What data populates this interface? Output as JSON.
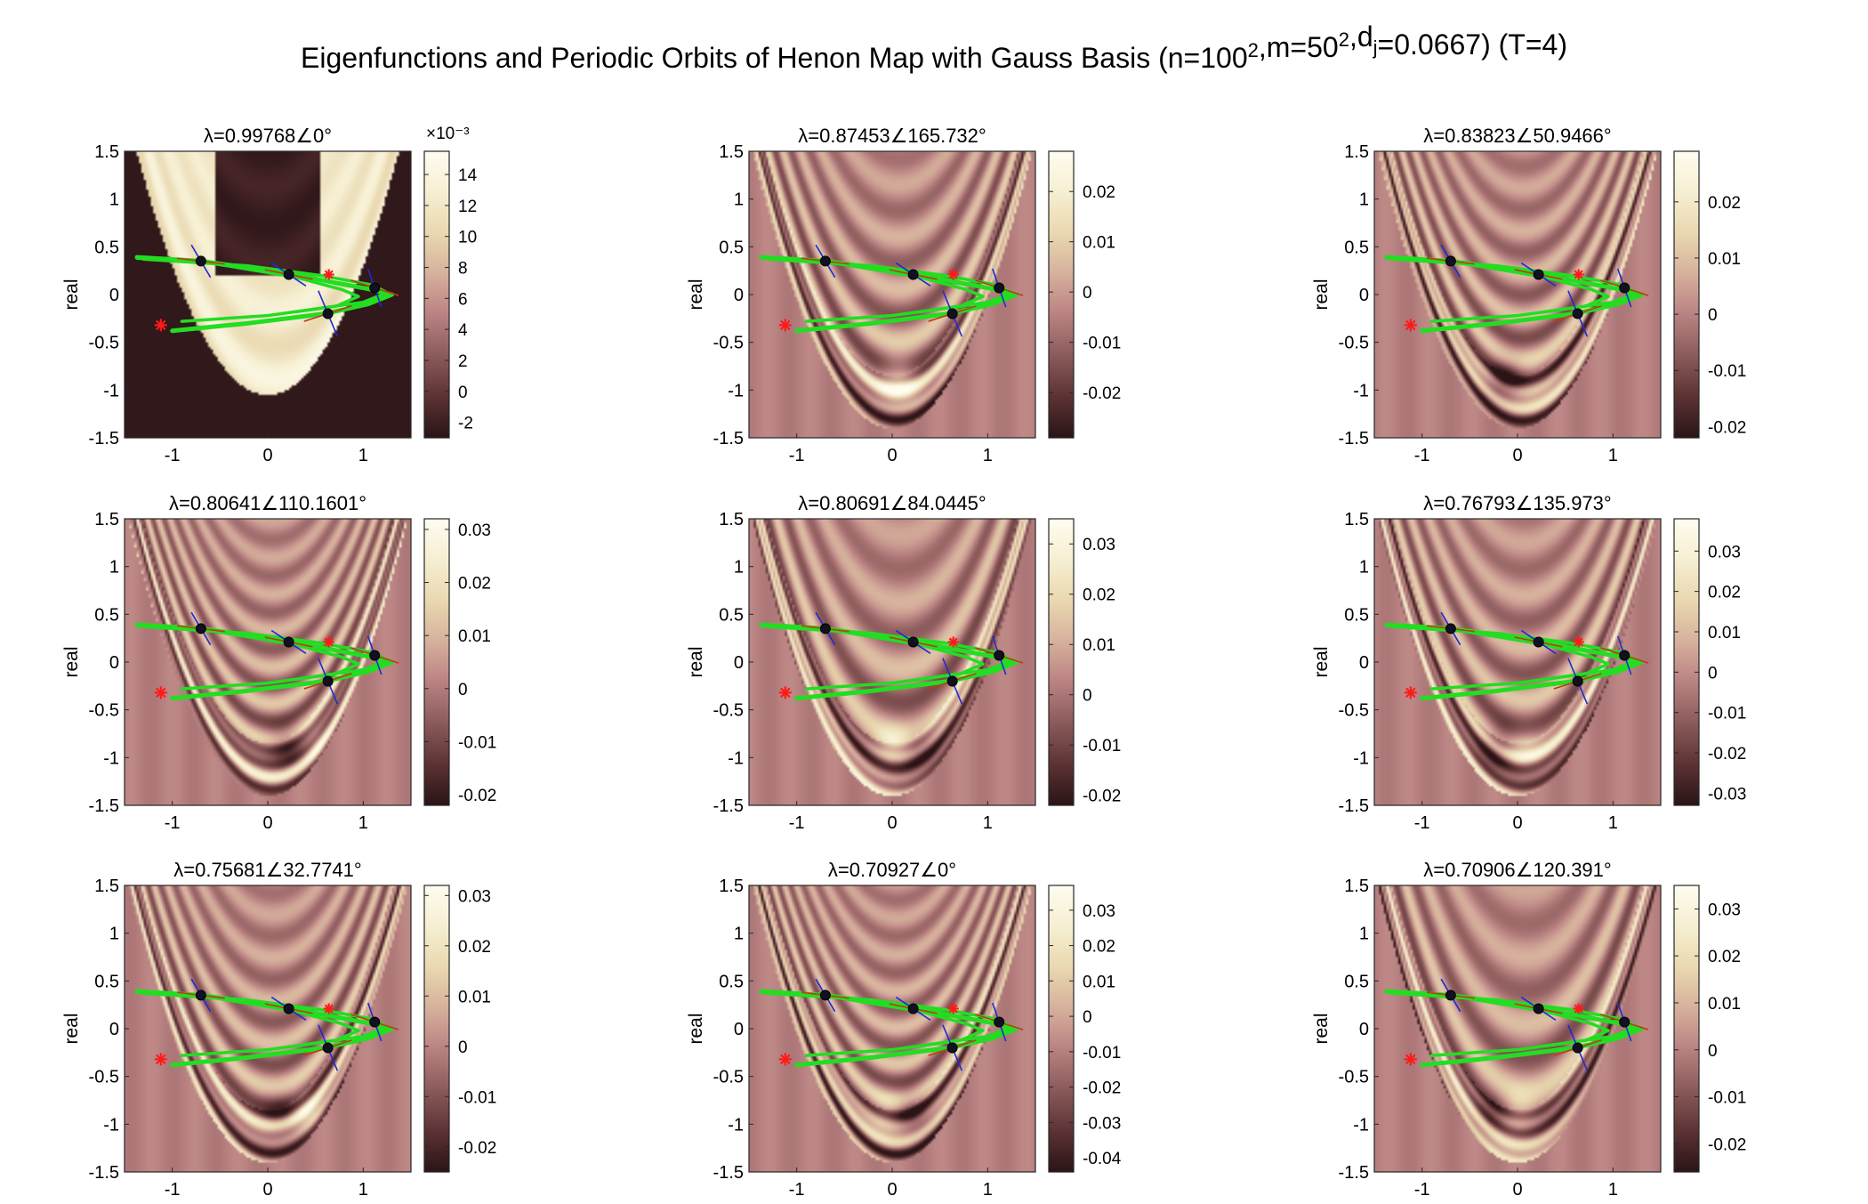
{
  "figure": {
    "title": "Eigenfunctions and Periodic Orbits of Henon Map with Gauss Basis (n=100²,m=50²,dⱼ=0.0667) (T=4)"
  },
  "colors": {
    "colormap": [
      "#2a1416",
      "#5c3234",
      "#8b5a5a",
      "#b98282",
      "#d6b09c",
      "#e9d8b0",
      "#f6efd2",
      "#fffcf0"
    ],
    "orbit_curve": "#22dd22",
    "periodic_point": "#111122",
    "stable_direction": "#1d2bd6",
    "unstable_direction": "#c23a18",
    "marker_star": "#ff1a1a"
  },
  "axes_common": {
    "ylabel": "real",
    "xlim": [
      -1.5,
      1.5
    ],
    "ylim": [
      -1.5,
      1.5
    ],
    "xticks": [
      "-1",
      "0",
      "1"
    ],
    "yticks": [
      "1.5",
      "1",
      "0.5",
      "0",
      "-0.5",
      "-1",
      "-1.5"
    ]
  },
  "chart_data": [
    {
      "type": "heatmap",
      "title": "λ=0.99768∠0°",
      "colorbar_ticks": [
        "14",
        "12",
        "10",
        "8",
        "6",
        "4",
        "2",
        "0",
        "-2"
      ],
      "colorbar_exponent": "×10⁻³",
      "clim": [
        -3,
        15.5
      ],
      "mode": 0,
      "periodic_points": [
        [
          -0.7,
          0.35
        ],
        [
          0.22,
          0.21
        ],
        [
          0.63,
          -0.2
        ],
        [
          1.12,
          0.07
        ]
      ],
      "stars": [
        [
          -1.12,
          -0.32
        ],
        [
          0.64,
          0.21
        ]
      ]
    },
    {
      "type": "heatmap",
      "title": "λ=0.87453∠165.732°",
      "colorbar_ticks": [
        "0.02",
        "0.01",
        "0",
        "-0.01",
        "-0.02"
      ],
      "colorbar_exponent": "",
      "clim": [
        -0.029,
        0.028
      ],
      "mode": 1,
      "periodic_points": [
        [
          -0.7,
          0.35
        ],
        [
          0.22,
          0.21
        ],
        [
          0.63,
          -0.2
        ],
        [
          1.12,
          0.07
        ]
      ],
      "stars": [
        [
          -1.12,
          -0.32
        ],
        [
          0.64,
          0.21
        ]
      ]
    },
    {
      "type": "heatmap",
      "title": "λ=0.83823∠50.9466°",
      "colorbar_ticks": [
        "0.02",
        "0.01",
        "0",
        "-0.01",
        "-0.02"
      ],
      "colorbar_exponent": "",
      "clim": [
        -0.022,
        0.029
      ],
      "mode": 2,
      "periodic_points": [
        [
          -0.7,
          0.35
        ],
        [
          0.22,
          0.21
        ],
        [
          0.63,
          -0.2
        ],
        [
          1.12,
          0.07
        ]
      ],
      "stars": [
        [
          -1.12,
          -0.32
        ],
        [
          0.64,
          0.21
        ]
      ]
    },
    {
      "type": "heatmap",
      "title": "λ=0.80641∠110.1601°",
      "colorbar_ticks": [
        "0.03",
        "0.02",
        "0.01",
        "0",
        "-0.01",
        "-0.02"
      ],
      "colorbar_exponent": "",
      "clim": [
        -0.022,
        0.032
      ],
      "mode": 3,
      "periodic_points": [
        [
          -0.7,
          0.35
        ],
        [
          0.22,
          0.21
        ],
        [
          0.63,
          -0.2
        ],
        [
          1.12,
          0.07
        ]
      ],
      "stars": [
        [
          -1.12,
          -0.32
        ],
        [
          0.64,
          0.21
        ]
      ]
    },
    {
      "type": "heatmap",
      "title": "λ=0.80691∠84.0445°",
      "colorbar_ticks": [
        "0.03",
        "0.02",
        "0.01",
        "0",
        "-0.01",
        "-0.02"
      ],
      "colorbar_exponent": "",
      "clim": [
        -0.022,
        0.035
      ],
      "mode": 4,
      "periodic_points": [
        [
          -0.7,
          0.35
        ],
        [
          0.22,
          0.21
        ],
        [
          0.63,
          -0.2
        ],
        [
          1.12,
          0.07
        ]
      ],
      "stars": [
        [
          -1.12,
          -0.32
        ],
        [
          0.64,
          0.21
        ]
      ]
    },
    {
      "type": "heatmap",
      "title": "λ=0.76793∠135.973°",
      "colorbar_ticks": [
        "0.03",
        "0.02",
        "0.01",
        "0",
        "-0.01",
        "-0.02",
        "-0.03"
      ],
      "colorbar_exponent": "",
      "clim": [
        -0.033,
        0.038
      ],
      "mode": 5,
      "periodic_points": [
        [
          -0.7,
          0.35
        ],
        [
          0.22,
          0.21
        ],
        [
          0.63,
          -0.2
        ],
        [
          1.12,
          0.07
        ]
      ],
      "stars": [
        [
          -1.12,
          -0.32
        ],
        [
          0.64,
          0.21
        ]
      ]
    },
    {
      "type": "heatmap",
      "title": "λ=0.75681∠32.7741°",
      "colorbar_ticks": [
        "0.03",
        "0.02",
        "0.01",
        "0",
        "-0.01",
        "-0.02"
      ],
      "colorbar_exponent": "",
      "clim": [
        -0.025,
        0.032
      ],
      "mode": 6,
      "periodic_points": [
        [
          -0.7,
          0.35
        ],
        [
          0.22,
          0.21
        ],
        [
          0.63,
          -0.2
        ],
        [
          1.12,
          0.07
        ]
      ],
      "stars": [
        [
          -1.12,
          -0.32
        ],
        [
          0.64,
          0.21
        ]
      ]
    },
    {
      "type": "heatmap",
      "title": "λ=0.70927∠0°",
      "colorbar_ticks": [
        "0.03",
        "0.02",
        "0.01",
        "0",
        "-0.01",
        "-0.02",
        "-0.03",
        "-0.04"
      ],
      "colorbar_exponent": "",
      "clim": [
        -0.044,
        0.037
      ],
      "mode": 7,
      "periodic_points": [
        [
          -0.7,
          0.35
        ],
        [
          0.22,
          0.21
        ],
        [
          0.63,
          -0.2
        ],
        [
          1.12,
          0.07
        ]
      ],
      "stars": [
        [
          -1.12,
          -0.32
        ],
        [
          0.64,
          0.21
        ]
      ]
    },
    {
      "type": "heatmap",
      "title": "λ=0.70906∠120.391°",
      "colorbar_ticks": [
        "0.03",
        "0.02",
        "0.01",
        "0",
        "-0.01",
        "-0.02"
      ],
      "colorbar_exponent": "",
      "clim": [
        -0.026,
        0.035
      ],
      "mode": 8,
      "periodic_points": [
        [
          -0.7,
          0.35
        ],
        [
          0.22,
          0.21
        ],
        [
          0.63,
          -0.2
        ],
        [
          1.12,
          0.07
        ]
      ],
      "stars": [
        [
          -1.12,
          -0.32
        ],
        [
          0.64,
          0.21
        ]
      ]
    }
  ]
}
